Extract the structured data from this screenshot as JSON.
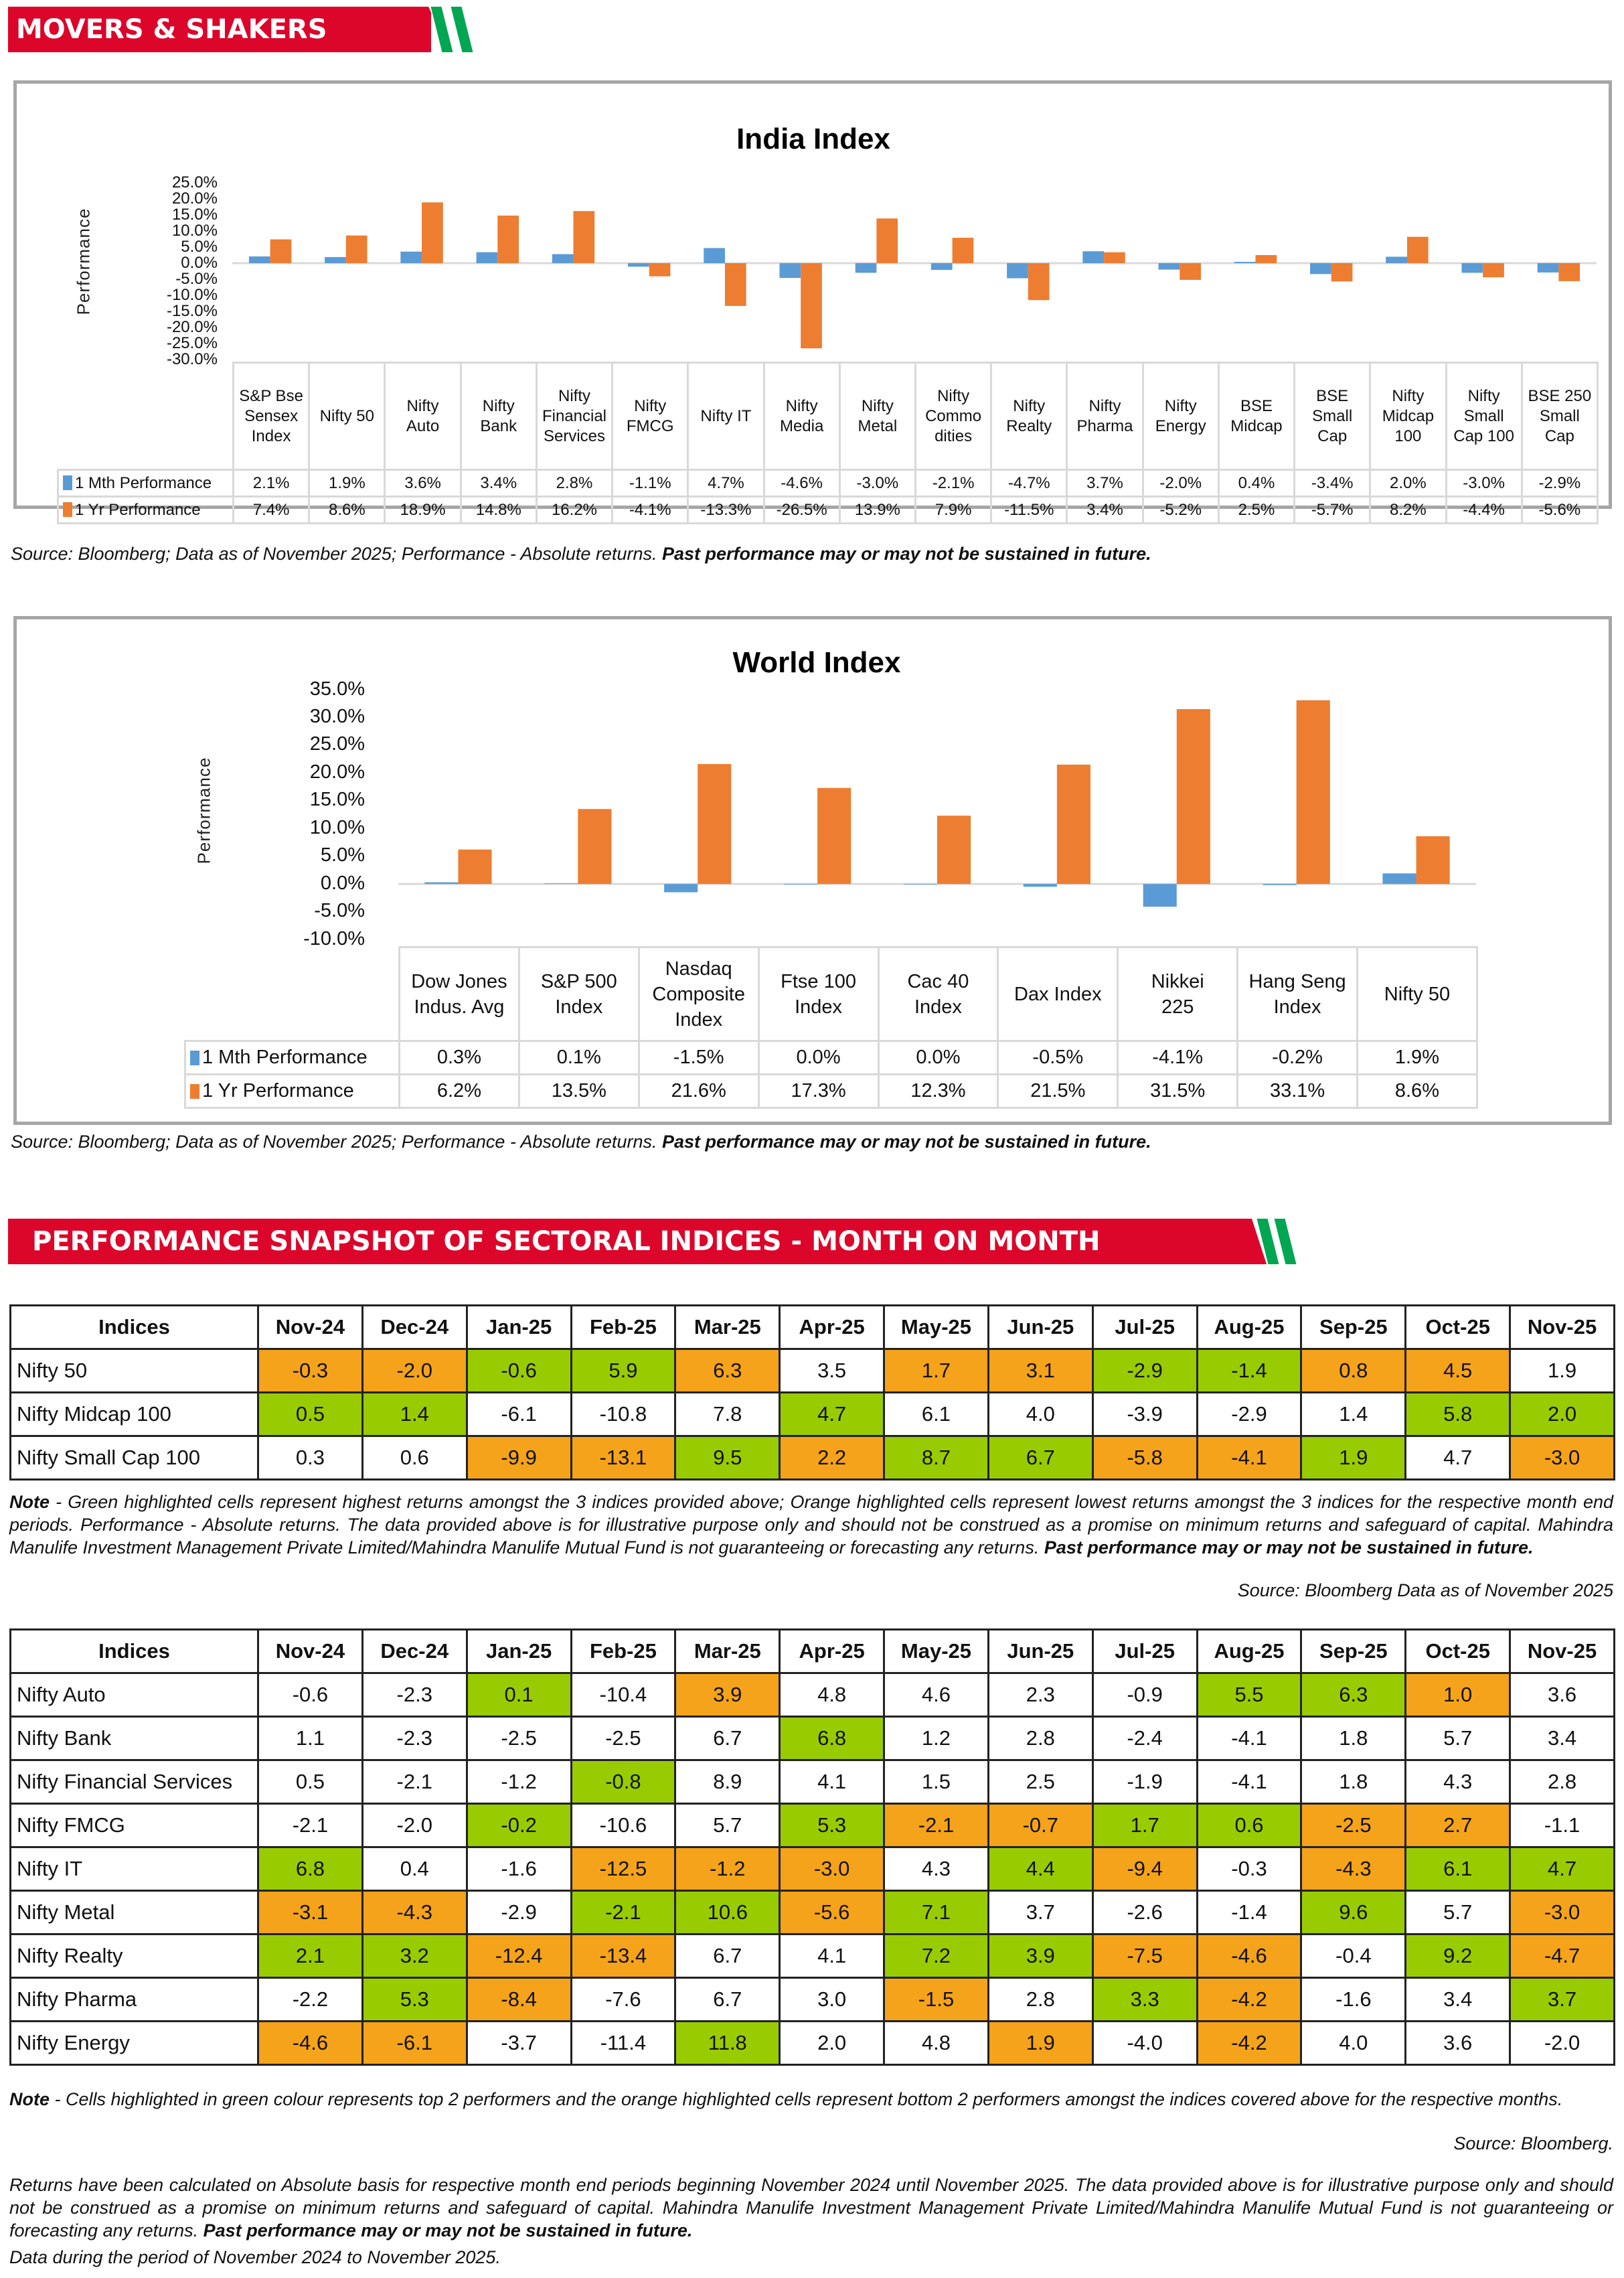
{
  "banners": {
    "movers": "MOVERS & SHAKERS",
    "sectoral": "PERFORMANCE SNAPSHOT OF SECTORAL INDICES - MONTH ON MONTH"
  },
  "colors": {
    "banner_red": "#dc052a",
    "stripe_green": "#00a651",
    "series_month": "#5b9bd5",
    "series_year": "#ed7d31",
    "cell_green": "#99cc00",
    "cell_orange": "#f5a31a"
  },
  "chart_data": [
    {
      "type": "bar",
      "title": "India Index",
      "ylabel": "Performance",
      "xlabel": "",
      "ylim": [
        -30,
        25
      ],
      "yticks": [
        "25.0%",
        "20.0%",
        "15.0%",
        "10.0%",
        "5.0%",
        "0.0%",
        "-5.0%",
        "-10.0%",
        "-15.0%",
        "-20.0%",
        "-25.0%",
        "-30.0%"
      ],
      "categories": [
        "S&P Bse Sensex Index",
        "Nifty 50",
        "Nifty Auto",
        "Nifty Bank",
        "Nifty Financial Services",
        "Nifty FMCG",
        "Nifty IT",
        "Nifty Media",
        "Nifty Metal",
        "Nifty Commo dities",
        "Nifty Realty",
        "Nifty Pharma",
        "Nifty Energy",
        "BSE Midcap",
        "BSE Small Cap",
        "Nifty Midcap 100",
        "Nifty Small Cap 100",
        "BSE 250 Small Cap"
      ],
      "series": [
        {
          "name": "1 Mth Performance",
          "values": [
            2.1,
            1.9,
            3.6,
            3.4,
            2.8,
            -1.1,
            4.7,
            -4.6,
            -3.0,
            -2.1,
            -4.7,
            3.7,
            -2.0,
            0.4,
            -3.4,
            2.0,
            -3.0,
            -2.9
          ],
          "labels": [
            "2.1%",
            "1.9%",
            "3.6%",
            "3.4%",
            "2.8%",
            "-1.1%",
            "4.7%",
            "-4.6%",
            "-3.0%",
            "-2.1%",
            "-4.7%",
            "3.7%",
            "-2.0%",
            "0.4%",
            "-3.4%",
            "2.0%",
            "-3.0%",
            "-2.9%"
          ]
        },
        {
          "name": "1 Yr Performance",
          "values": [
            7.4,
            8.6,
            18.9,
            14.8,
            16.2,
            -4.1,
            -13.3,
            -26.5,
            13.9,
            7.9,
            -11.5,
            3.4,
            -5.2,
            2.5,
            -5.7,
            8.2,
            -4.4,
            -5.6
          ],
          "labels": [
            "7.4%",
            "8.6%",
            "18.9%",
            "14.8%",
            "16.2%",
            "-4.1%",
            "-13.3%",
            "-26.5%",
            "13.9%",
            "7.9%",
            "-11.5%",
            "3.4%",
            "-5.2%",
            "2.5%",
            "-5.7%",
            "8.2%",
            "-4.4%",
            "-5.6%"
          ]
        }
      ],
      "legend": "data-table"
    },
    {
      "type": "bar",
      "title": "World Index",
      "ylabel": "Performance",
      "xlabel": "",
      "ylim": [
        -10,
        35
      ],
      "yticks": [
        "35.0%",
        "30.0%",
        "25.0%",
        "20.0%",
        "15.0%",
        "10.0%",
        "5.0%",
        "0.0%",
        "-5.0%",
        "-10.0%"
      ],
      "categories": [
        "Dow Jones Indus. Avg",
        "S&P 500 Index",
        "Nasdaq Composite Index",
        "Ftse 100 Index",
        "Cac 40 Index",
        "Dax Index",
        "Nikkei 225",
        "Hang Seng Index",
        "Nifty 50"
      ],
      "series": [
        {
          "name": "1 Mth Performance",
          "values": [
            0.3,
            0.1,
            -1.5,
            0.0,
            0.0,
            -0.5,
            -4.1,
            -0.2,
            1.9
          ],
          "labels": [
            "0.3%",
            "0.1%",
            "-1.5%",
            "0.0%",
            "0.0%",
            "-0.5%",
            "-4.1%",
            "-0.2%",
            "1.9%"
          ]
        },
        {
          "name": "1 Yr Performance",
          "values": [
            6.2,
            13.5,
            21.6,
            17.3,
            12.3,
            21.5,
            31.5,
            33.1,
            8.6
          ],
          "labels": [
            "6.2%",
            "13.5%",
            "21.6%",
            "17.3%",
            "12.3%",
            "21.5%",
            "31.5%",
            "33.1%",
            "8.6%"
          ]
        }
      ],
      "legend": "data-table"
    }
  ],
  "india_cat_lines": [
    [
      "S&P Bse",
      "Sensex",
      "Index"
    ],
    [
      "Nifty 50"
    ],
    [
      "Nifty",
      "Auto"
    ],
    [
      "Nifty",
      "Bank"
    ],
    [
      "Nifty",
      "Financial",
      "Services"
    ],
    [
      "Nifty",
      "FMCG"
    ],
    [
      "Nifty IT"
    ],
    [
      "Nifty",
      "Media"
    ],
    [
      "Nifty",
      "Metal"
    ],
    [
      "Nifty",
      "Commo",
      "dities"
    ],
    [
      "Nifty",
      "Realty"
    ],
    [
      "Nifty",
      "Pharma"
    ],
    [
      "Nifty",
      "Energy"
    ],
    [
      "BSE",
      "Midcap"
    ],
    [
      "BSE",
      "Small",
      "Cap"
    ],
    [
      "Nifty",
      "Midcap",
      "100"
    ],
    [
      "Nifty",
      "Small",
      "Cap 100"
    ],
    [
      "BSE 250",
      "Small",
      "Cap"
    ]
  ],
  "world_cat_lines": [
    [
      "Dow Jones",
      "Indus. Avg"
    ],
    [
      "S&P 500",
      "Index"
    ],
    [
      "Nasdaq",
      "Composite",
      "Index"
    ],
    [
      "Ftse 100",
      "Index"
    ],
    [
      "Cac 40",
      "Index"
    ],
    [
      "Dax Index"
    ],
    [
      "Nikkei",
      "225"
    ],
    [
      "Hang Seng",
      "Index"
    ],
    [
      "Nifty 50"
    ]
  ],
  "source_chart": {
    "plain": "Source: Bloomberg; Data as of November 2025; Performance - Absolute returns. ",
    "bold": "Past performance may or may not be sustained in future."
  },
  "table1": {
    "headers": [
      "Indices",
      "Nov-24",
      "Dec-24",
      "Jan-25",
      "Feb-25",
      "Mar-25",
      "Apr-25",
      "May-25",
      "Jun-25",
      "Jul-25",
      "Aug-25",
      "Sep-25",
      "Oct-25",
      "Nov-25"
    ],
    "rows": [
      {
        "name": "Nifty 50",
        "values": [
          "-0.3",
          "-2.0",
          "-0.6",
          "5.9",
          "6.3",
          "3.5",
          "1.7",
          "3.1",
          "-2.9",
          "-1.4",
          "0.8",
          "4.5",
          "1.9"
        ],
        "hl": [
          "o",
          "o",
          "g",
          "g",
          "o",
          "",
          "o",
          "o",
          "g",
          "g",
          "o",
          "o",
          ""
        ]
      },
      {
        "name": "Nifty Midcap 100",
        "values": [
          "0.5",
          "1.4",
          "-6.1",
          "-10.8",
          "7.8",
          "4.7",
          "6.1",
          "4.0",
          "-3.9",
          "-2.9",
          "1.4",
          "5.8",
          "2.0"
        ],
        "hl": [
          "g",
          "g",
          "",
          "",
          "",
          "g",
          "",
          "",
          "",
          "",
          "",
          "g",
          "g"
        ]
      },
      {
        "name": "Nifty Small Cap 100",
        "values": [
          "0.3",
          "0.6",
          "-9.9",
          "-13.1",
          "9.5",
          "2.2",
          "8.7",
          "6.7",
          "-5.8",
          "-4.1",
          "1.9",
          "4.7",
          "-3.0"
        ],
        "hl": [
          "",
          "",
          "o",
          "o",
          "g",
          "o",
          "g",
          "g",
          "o",
          "o",
          "g",
          "",
          "o"
        ]
      }
    ]
  },
  "note1": {
    "label": "Note",
    "text": " - Green highlighted cells represent highest returns amongst the 3 indices provided above; Orange highlighted cells represent lowest returns amongst the 3 indices for the respective month end periods. Performance - Absolute returns. The data provided above is for illustrative purpose only and should not be construed as a promise on minimum returns and safeguard of capital. Mahindra Manulife Investment Management Private Limited/Mahindra Manulife Mutual Fund is not guaranteeing or forecasting any returns. ",
    "bold": "Past performance may or may not be sustained in future.",
    "source": "Source: Bloomberg Data as of November 2025"
  },
  "table2": {
    "headers": [
      "Indices",
      "Nov-24",
      "Dec-24",
      "Jan-25",
      "Feb-25",
      "Mar-25",
      "Apr-25",
      "May-25",
      "Jun-25",
      "Jul-25",
      "Aug-25",
      "Sep-25",
      "Oct-25",
      "Nov-25"
    ],
    "rows": [
      {
        "name": "Nifty Auto",
        "values": [
          "-0.6",
          "-2.3",
          "0.1",
          "-10.4",
          "3.9",
          "4.8",
          "4.6",
          "2.3",
          "-0.9",
          "5.5",
          "6.3",
          "1.0",
          "3.6"
        ],
        "hl": [
          "",
          "",
          "g",
          "",
          "o",
          "",
          "",
          "",
          "",
          "g",
          "g",
          "o",
          ""
        ]
      },
      {
        "name": "Nifty Bank",
        "values": [
          "1.1",
          "-2.3",
          "-2.5",
          "-2.5",
          "6.7",
          "6.8",
          "1.2",
          "2.8",
          "-2.4",
          "-4.1",
          "1.8",
          "5.7",
          "3.4"
        ],
        "hl": [
          "",
          "",
          "",
          "",
          "",
          "g",
          "",
          "",
          "",
          "",
          "",
          "",
          ""
        ]
      },
      {
        "name": "Nifty Financial Services",
        "values": [
          "0.5",
          "-2.1",
          "-1.2",
          "-0.8",
          "8.9",
          "4.1",
          "1.5",
          "2.5",
          "-1.9",
          "-4.1",
          "1.8",
          "4.3",
          "2.8"
        ],
        "hl": [
          "",
          "",
          "",
          "g",
          "",
          "",
          "",
          "",
          "",
          "",
          "",
          "",
          ""
        ]
      },
      {
        "name": "Nifty FMCG",
        "values": [
          "-2.1",
          "-2.0",
          "-0.2",
          "-10.6",
          "5.7",
          "5.3",
          "-2.1",
          "-0.7",
          "1.7",
          "0.6",
          "-2.5",
          "2.7",
          "-1.1"
        ],
        "hl": [
          "",
          "",
          "g",
          "",
          "",
          "g",
          "o",
          "o",
          "g",
          "g",
          "o",
          "o",
          ""
        ]
      },
      {
        "name": "Nifty IT",
        "values": [
          "6.8",
          "0.4",
          "-1.6",
          "-12.5",
          "-1.2",
          "-3.0",
          "4.3",
          "4.4",
          "-9.4",
          "-0.3",
          "-4.3",
          "6.1",
          "4.7"
        ],
        "hl": [
          "g",
          "",
          "",
          "o",
          "o",
          "o",
          "",
          "g",
          "o",
          "",
          "o",
          "g",
          "g"
        ]
      },
      {
        "name": "Nifty Metal",
        "values": [
          "-3.1",
          "-4.3",
          "-2.9",
          "-2.1",
          "10.6",
          "-5.6",
          "7.1",
          "3.7",
          "-2.6",
          "-1.4",
          "9.6",
          "5.7",
          "-3.0"
        ],
        "hl": [
          "o",
          "o",
          "",
          "g",
          "g",
          "o",
          "g",
          "",
          "",
          "",
          "g",
          "",
          "o"
        ]
      },
      {
        "name": "Nifty Realty",
        "values": [
          "2.1",
          "3.2",
          "-12.4",
          "-13.4",
          "6.7",
          "4.1",
          "7.2",
          "3.9",
          "-7.5",
          "-4.6",
          "-0.4",
          "9.2",
          "-4.7"
        ],
        "hl": [
          "g",
          "g",
          "o",
          "o",
          "",
          "",
          "g",
          "g",
          "o",
          "o",
          "",
          "g",
          "o"
        ]
      },
      {
        "name": "Nifty Pharma",
        "values": [
          "-2.2",
          "5.3",
          "-8.4",
          "-7.6",
          "6.7",
          "3.0",
          "-1.5",
          "2.8",
          "3.3",
          "-4.2",
          "-1.6",
          "3.4",
          "3.7"
        ],
        "hl": [
          "",
          "g",
          "o",
          "",
          "",
          "",
          "o",
          "",
          "g",
          "o",
          "",
          "",
          "g"
        ]
      },
      {
        "name": "Nifty Energy",
        "values": [
          "-4.6",
          "-6.1",
          "-3.7",
          "-11.4",
          "11.8",
          "2.0",
          "4.8",
          "1.9",
          "-4.0",
          "-4.2",
          "4.0",
          "3.6",
          "-2.0"
        ],
        "hl": [
          "o",
          "o",
          "",
          "",
          "g",
          "",
          "",
          "o",
          "",
          "o",
          "",
          "",
          ""
        ]
      }
    ]
  },
  "note2": {
    "label": "Note",
    "text": " - Cells highlighted in green colour represents top 2 performers and the orange highlighted cells represent bottom 2 performers amongst the indices covered above for the respective months.",
    "source": "Source: Bloomberg."
  },
  "disclaimer": {
    "text": "Returns have been calculated on Absolute basis for respective month end periods beginning November 2024 until November 2025. The data provided above is for illustrative purpose only and should not be construed as a promise on minimum returns and safeguard of capital. Mahindra Manulife Investment Management Private Limited/Mahindra Manulife Mutual Fund is not guaranteeing or forecasting any returns. ",
    "bold": "Past performance may or may not be sustained in future.",
    "period": "Data during the period of November 2024 to November 2025."
  }
}
